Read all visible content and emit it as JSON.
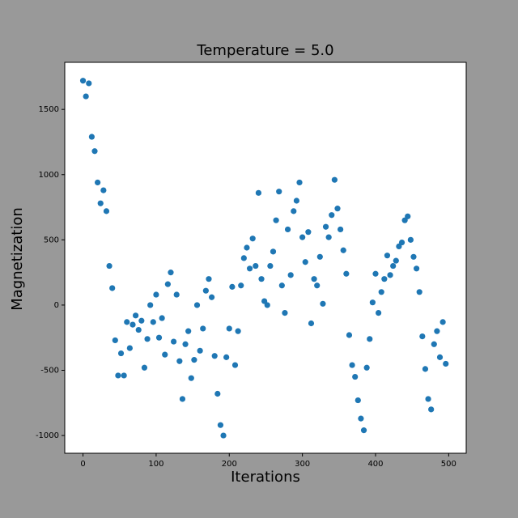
{
  "chart_data": {
    "type": "scatter",
    "title": "Temperature = 5.0",
    "x_label": "Iterations",
    "y_label": "Magnetization",
    "color": "#1f77b4",
    "x": [
      0,
      4,
      8,
      12,
      16,
      20,
      24,
      28,
      32,
      36,
      40,
      44,
      48,
      52,
      56,
      60,
      64,
      68,
      72,
      76,
      80,
      84,
      88,
      92,
      96,
      100,
      104,
      108,
      112,
      116,
      120,
      124,
      128,
      132,
      136,
      140,
      144,
      148,
      152,
      156,
      160,
      164,
      168,
      172,
      176,
      180,
      184,
      188,
      192,
      196,
      200,
      204,
      208,
      212,
      216,
      220,
      224,
      228,
      232,
      236,
      240,
      244,
      248,
      252,
      256,
      260,
      264,
      268,
      272,
      276,
      280,
      284,
      288,
      292,
      296,
      300,
      304,
      308,
      312,
      316,
      320,
      324,
      328,
      332,
      336,
      340,
      344,
      348,
      352,
      356,
      360,
      364,
      368,
      372,
      376,
      380,
      384,
      388,
      392,
      396,
      400,
      404,
      408,
      412,
      416,
      420,
      424,
      428,
      432,
      436,
      440,
      444,
      448,
      452,
      456,
      460,
      464,
      468,
      472,
      476,
      480,
      484,
      488,
      492,
      496
    ],
    "values": [
      1720,
      1600,
      1700,
      1290,
      1180,
      940,
      780,
      880,
      720,
      300,
      130,
      -270,
      -540,
      -370,
      -540,
      -130,
      -330,
      -150,
      -80,
      -190,
      -120,
      -480,
      -260,
      0,
      -130,
      80,
      -250,
      -100,
      -380,
      160,
      250,
      -280,
      80,
      -430,
      -720,
      -300,
      -200,
      -560,
      -420,
      0,
      -350,
      -180,
      110,
      200,
      60,
      -390,
      -680,
      -920,
      -1000,
      -400,
      -180,
      140,
      -460,
      -200,
      150,
      360,
      440,
      280,
      510,
      300,
      860,
      200,
      30,
      0,
      300,
      410,
      650,
      870,
      150,
      -60,
      580,
      230,
      720,
      800,
      940,
      520,
      330,
      560,
      -140,
      200,
      150,
      370,
      10,
      600,
      520,
      690,
      960,
      740,
      580,
      420,
      240,
      -230,
      -460,
      -550,
      -730,
      -870,
      -960,
      -480,
      -260,
      20,
      240,
      -60,
      100,
      200,
      380,
      230,
      300,
      340,
      450,
      480,
      650,
      680,
      500,
      370,
      280,
      100,
      -240,
      -490,
      -720,
      -800,
      -300,
      -200,
      -400,
      -130,
      -450
    ],
    "xlim": [
      -24.95,
      523.95
    ],
    "ylim": [
      -1136,
      1861
    ],
    "xticks": [
      0,
      100,
      200,
      300,
      400,
      500
    ],
    "yticks": [
      -1000,
      -500,
      0,
      500,
      1000,
      1500
    ]
  }
}
